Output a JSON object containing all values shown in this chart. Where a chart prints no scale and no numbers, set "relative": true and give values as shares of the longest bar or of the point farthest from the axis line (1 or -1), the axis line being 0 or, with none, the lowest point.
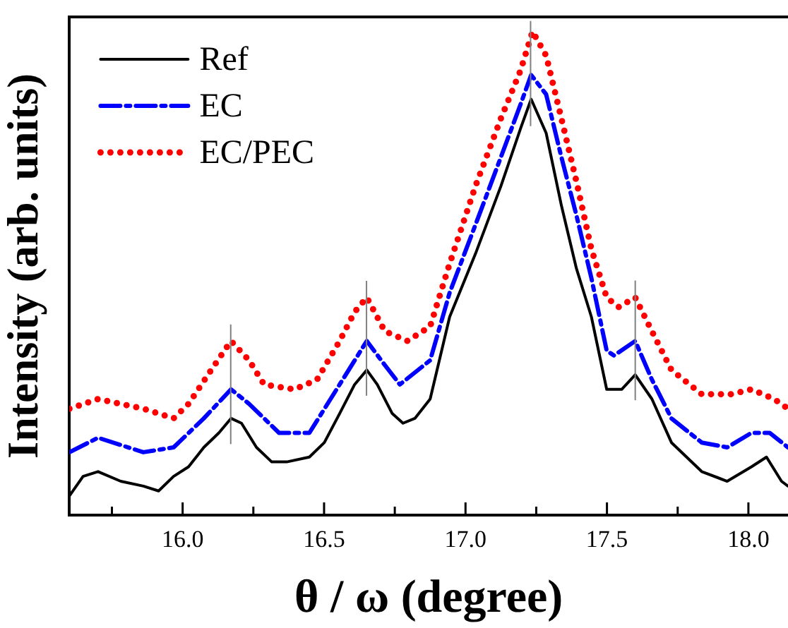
{
  "chart_data": {
    "type": "line",
    "xlabel": "θ / ω (degree)",
    "ylabel": "Intensity (arb. units)",
    "relative": true,
    "grid": false,
    "legend": "top left",
    "marker": "none",
    "xlim": [
      15.6,
      18.14
    ],
    "xticks": [
      {
        "value": 15.75,
        "label": null
      },
      {
        "value": 16,
        "label": "16.0"
      },
      {
        "value": 16.25,
        "label": null
      },
      {
        "value": 16.5,
        "label": "16.5"
      },
      {
        "value": 16.75,
        "label": null
      },
      {
        "value": 17,
        "label": "17.0"
      },
      {
        "value": 17.25,
        "label": null
      },
      {
        "value": 17.5,
        "label": "17.5"
      },
      {
        "value": 17.75,
        "label": null
      },
      {
        "value": 18,
        "label": "18.0"
      }
    ],
    "series": [
      {
        "name": "Ref",
        "color": "#000000",
        "line_style": "solid",
        "x": [
          15.6,
          15.648,
          15.701,
          15.781,
          15.861,
          15.915,
          15.968,
          16.021,
          16.075,
          16.128,
          16.171,
          16.208,
          16.261,
          16.315,
          16.368,
          16.448,
          16.501,
          16.555,
          16.608,
          16.651,
          16.688,
          16.741,
          16.779,
          16.821,
          16.875,
          16.944,
          17.035,
          17.125,
          17.195,
          17.232,
          17.285,
          17.339,
          17.392,
          17.445,
          17.499,
          17.552,
          17.6,
          17.659,
          17.728,
          17.835,
          17.925,
          18.011,
          18.064,
          18.117,
          18.14
        ],
        "values": [
          0.04,
          0.08,
          0.09,
          0.07,
          0.06,
          0.05,
          0.08,
          0.1,
          0.14,
          0.17,
          0.2,
          0.19,
          0.14,
          0.11,
          0.11,
          0.12,
          0.15,
          0.21,
          0.27,
          0.3,
          0.27,
          0.21,
          0.19,
          0.2,
          0.24,
          0.41,
          0.54,
          0.68,
          0.8,
          0.86,
          0.79,
          0.64,
          0.51,
          0.41,
          0.26,
          0.26,
          0.29,
          0.24,
          0.15,
          0.09,
          0.07,
          0.1,
          0.12,
          0.07,
          0.06
        ]
      },
      {
        "name": "EC",
        "color": "#0000ff",
        "line_style": "dashed",
        "x": [
          15.6,
          15.701,
          15.861,
          15.968,
          16.075,
          16.171,
          16.235,
          16.341,
          16.448,
          16.555,
          16.651,
          16.715,
          16.768,
          16.875,
          16.944,
          17.035,
          17.125,
          17.195,
          17.232,
          17.285,
          17.339,
          17.392,
          17.445,
          17.499,
          17.525,
          17.6,
          17.659,
          17.728,
          17.835,
          17.925,
          18.011,
          18.075,
          18.14
        ],
        "values": [
          0.13,
          0.16,
          0.13,
          0.14,
          0.2,
          0.26,
          0.23,
          0.17,
          0.17,
          0.27,
          0.36,
          0.31,
          0.27,
          0.32,
          0.46,
          0.6,
          0.74,
          0.85,
          0.91,
          0.87,
          0.74,
          0.62,
          0.49,
          0.34,
          0.33,
          0.36,
          0.28,
          0.2,
          0.15,
          0.14,
          0.17,
          0.17,
          0.14
        ]
      },
      {
        "name": "EC/PEC",
        "color": "#ff0000",
        "line_style": "dotted",
        "x": [
          15.6,
          15.701,
          15.861,
          15.968,
          16.021,
          16.101,
          16.171,
          16.235,
          16.288,
          16.395,
          16.475,
          16.555,
          16.608,
          16.651,
          16.715,
          16.795,
          16.875,
          16.944,
          17.035,
          17.125,
          17.195,
          17.237,
          17.285,
          17.339,
          17.392,
          17.445,
          17.499,
          17.541,
          17.6,
          17.659,
          17.728,
          17.835,
          17.941,
          18.011,
          18.091,
          18.14
        ],
        "values": [
          0.22,
          0.24,
          0.22,
          0.2,
          0.23,
          0.3,
          0.36,
          0.32,
          0.27,
          0.26,
          0.28,
          0.36,
          0.42,
          0.45,
          0.38,
          0.36,
          0.39,
          0.52,
          0.68,
          0.82,
          0.92,
          1,
          0.95,
          0.82,
          0.69,
          0.55,
          0.45,
          0.43,
          0.45,
          0.38,
          0.3,
          0.25,
          0.25,
          0.26,
          0.24,
          0.22
        ]
      }
    ],
    "ref_lines": [
      {
        "axis": "x",
        "value": 16.17,
        "color": "#808080"
      },
      {
        "axis": "x",
        "value": 16.65,
        "color": "#808080"
      },
      {
        "axis": "x",
        "value": 17.23,
        "color": "#808080"
      },
      {
        "axis": "x",
        "value": 17.6,
        "color": "#808080"
      }
    ]
  }
}
